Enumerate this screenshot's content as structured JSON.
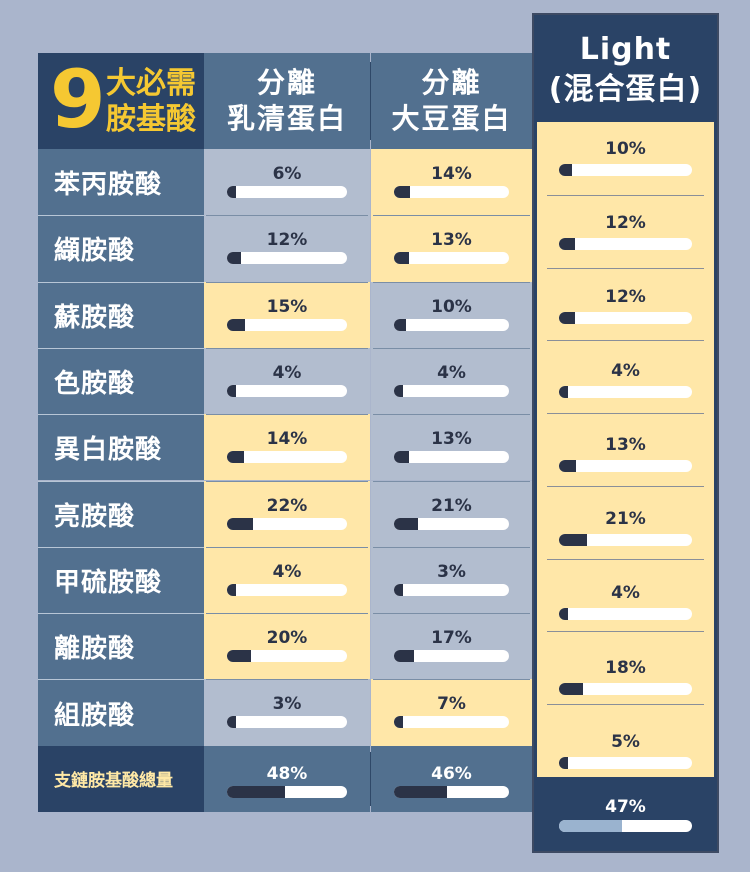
{
  "header": {
    "title_number": "9",
    "title_line1": "大必需",
    "title_line2": "胺基酸",
    "columns": [
      {
        "line1": "分離",
        "line2": "乳清蛋白"
      },
      {
        "line1": "分離",
        "line2": "大豆蛋白"
      },
      {
        "line1": "Light",
        "line2": "(混合蛋白)"
      }
    ]
  },
  "colors": {
    "background": "#aab5cc",
    "label_column": "#52708f",
    "header_dark": "#2a4366",
    "highlight_yellow": "#ffe7a8",
    "neutral_cell": "#b2bdcf",
    "bar_fill": "#2b3347",
    "title_gold": "#f5c832"
  },
  "chart_data": {
    "type": "table",
    "rows": [
      "苯丙胺酸",
      "纈胺酸",
      "蘇胺酸",
      "色胺酸",
      "異白胺酸",
      "亮胺酸",
      "甲硫胺酸",
      "離胺酸",
      "組胺酸"
    ],
    "series": [
      {
        "name": "分離乳清蛋白",
        "values": [
          6,
          12,
          15,
          4,
          14,
          22,
          4,
          20,
          3
        ],
        "labels": [
          "6%",
          "12%",
          "15%",
          "4%",
          "14%",
          "22%",
          "4%",
          "20%",
          "3%"
        ],
        "highlight": [
          false,
          false,
          true,
          false,
          true,
          true,
          true,
          true,
          false
        ]
      },
      {
        "name": "分離大豆蛋白",
        "values": [
          14,
          13,
          10,
          4,
          13,
          21,
          3,
          17,
          7
        ],
        "labels": [
          "14%",
          "13%",
          "10%",
          "4%",
          "13%",
          "21%",
          "3%",
          "17%",
          "7%"
        ],
        "highlight": [
          true,
          true,
          false,
          false,
          false,
          false,
          false,
          false,
          true
        ]
      },
      {
        "name": "Light(混合蛋白)",
        "values": [
          10,
          12,
          12,
          4,
          13,
          21,
          4,
          18,
          5
        ],
        "labels": [
          "10%",
          "12%",
          "12%",
          "4%",
          "13%",
          "21%",
          "4%",
          "18%",
          "5%"
        ],
        "highlight": [
          true,
          true,
          true,
          true,
          true,
          true,
          true,
          true,
          true
        ]
      }
    ],
    "total": {
      "label": "支鏈胺基酸總量",
      "values": [
        48,
        46,
        47
      ],
      "labels": [
        "48%",
        "46%",
        "47%"
      ]
    },
    "bar_max": 100
  }
}
